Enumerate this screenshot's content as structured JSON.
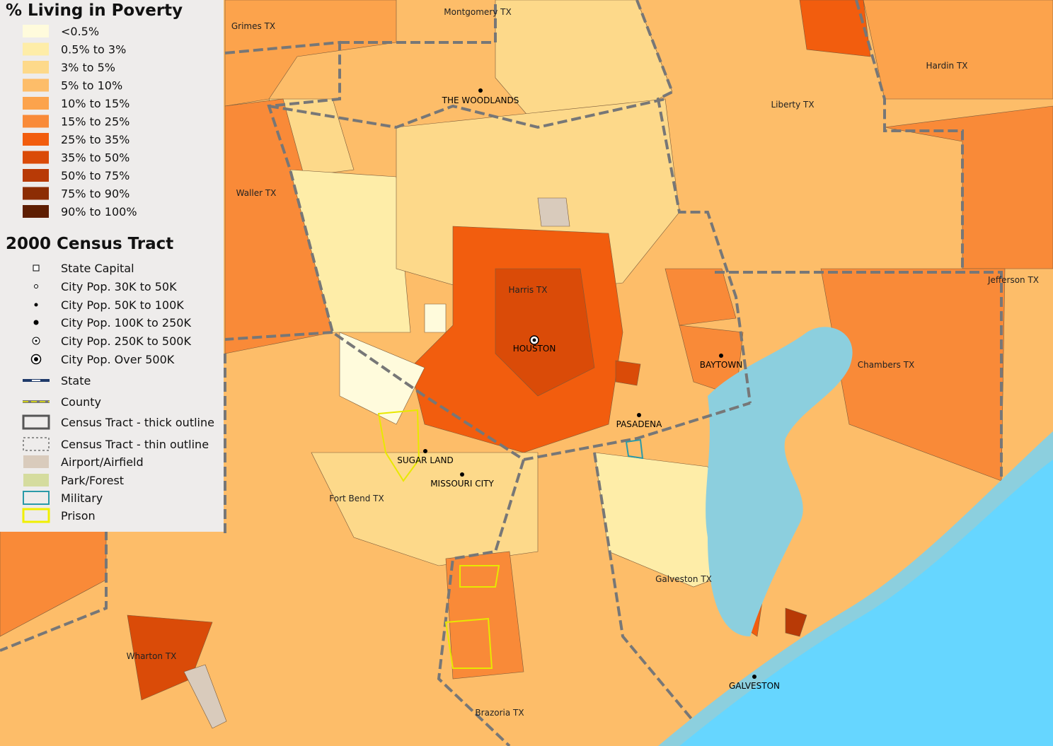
{
  "legend": {
    "title": "% Living in Poverty",
    "classes": [
      {
        "label": "<0.5%",
        "color": "#fffbdc"
      },
      {
        "label": "0.5% to 3%",
        "color": "#feeda8"
      },
      {
        "label": "3% to 5%",
        "color": "#fdd98a"
      },
      {
        "label": "5% to 10%",
        "color": "#fdbd69"
      },
      {
        "label": "10% to 15%",
        "color": "#fca34c"
      },
      {
        "label": "15% to 25%",
        "color": "#f98a38"
      },
      {
        "label": "25% to 35%",
        "color": "#f25d0e"
      },
      {
        "label": "35% to 50%",
        "color": "#da4b08"
      },
      {
        "label": "50% to 75%",
        "color": "#b83a06"
      },
      {
        "label": "75% to 90%",
        "color": "#8c2d04"
      },
      {
        "label": "90% to 100%",
        "color": "#5e1e02"
      }
    ]
  },
  "reference": {
    "title": "2000 Census Tract",
    "items": [
      "State Capital",
      "City Pop. 30K to 50K",
      "City Pop. 50K to 100K",
      "City Pop. 100K to 250K",
      "City Pop. 250K to 500K",
      "City Pop. Over 500K",
      "State",
      "County",
      "Census Tract - thick outline",
      "Census Tract - thin outline",
      "Airport/Airfield",
      "Park/Forest",
      "Military",
      "Prison"
    ]
  },
  "counties": [
    "Grimes TX",
    "Montgomery TX",
    "Hardin TX",
    "Liberty TX",
    "Waller TX",
    "Harris TX",
    "Jefferson TX",
    "Chambers TX",
    "Fort Bend TX",
    "Galveston TX",
    "Wharton TX",
    "Brazoria TX"
  ],
  "cities": [
    "THE WOODLANDS",
    "HOUSTON",
    "BAYTOWN",
    "PASADENA",
    "SUGAR LAND",
    "MISSOURI CITY",
    "GALVESTON"
  ]
}
